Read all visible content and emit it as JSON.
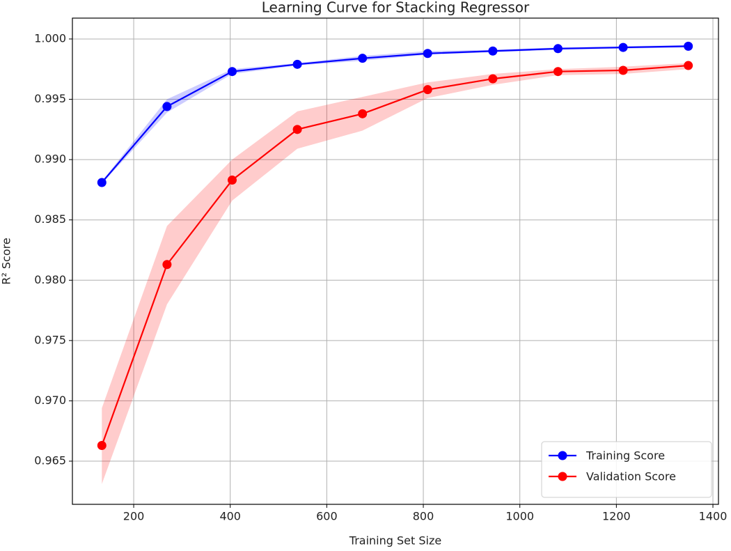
{
  "chart_data": {
    "type": "line",
    "title": "Learning Curve for Stacking Regressor",
    "x_label": "Training Set Size",
    "y_label": "R² Score",
    "x": [
      134,
      269,
      404,
      539,
      674,
      809,
      944,
      1079,
      1214,
      1349
    ],
    "series": [
      {
        "name": "Training Score",
        "color": "#0000ff",
        "values": [
          0.9881,
          0.9944,
          0.9973,
          0.9979,
          0.9984,
          0.9988,
          0.999,
          0.9992,
          0.9993,
          0.9994
        ],
        "band_lower": [
          0.988,
          0.9939,
          0.9971,
          0.9978,
          0.9982,
          0.9987,
          0.9989,
          0.9991,
          0.9992,
          0.9993
        ],
        "band_upper": [
          0.9882,
          0.995,
          0.9975,
          0.998,
          0.9986,
          0.999,
          0.9991,
          0.9993,
          0.9994,
          0.9995
        ]
      },
      {
        "name": "Validation Score",
        "color": "#ff0000",
        "values": [
          0.9663,
          0.9813,
          0.9883,
          0.9925,
          0.9938,
          0.9958,
          0.9967,
          0.9973,
          0.9974,
          0.9978
        ],
        "band_lower": [
          0.9631,
          0.978,
          0.9866,
          0.9909,
          0.9924,
          0.9951,
          0.9962,
          0.997,
          0.9971,
          0.9975
        ],
        "band_upper": [
          0.9694,
          0.9845,
          0.99,
          0.994,
          0.9952,
          0.9964,
          0.9971,
          0.9975,
          0.9977,
          0.998
        ]
      }
    ],
    "xlim": [
      73,
      1411.5
    ],
    "ylim": [
      0.96142,
      1.00173
    ],
    "xticks": [
      200,
      400,
      600,
      800,
      1000,
      1200,
      1400
    ],
    "yticks": [
      {
        "value": 0.965,
        "label": "0.965"
      },
      {
        "value": 0.97,
        "label": "0.970"
      },
      {
        "value": 0.975,
        "label": "0.975"
      },
      {
        "value": 0.98,
        "label": "0.980"
      },
      {
        "value": 0.985,
        "label": "0.985"
      },
      {
        "value": 0.99,
        "label": "0.990"
      },
      {
        "value": 0.995,
        "label": "0.995"
      },
      {
        "value": 1.0,
        "label": "1.000"
      }
    ],
    "grid": true,
    "legend": "lower right"
  }
}
